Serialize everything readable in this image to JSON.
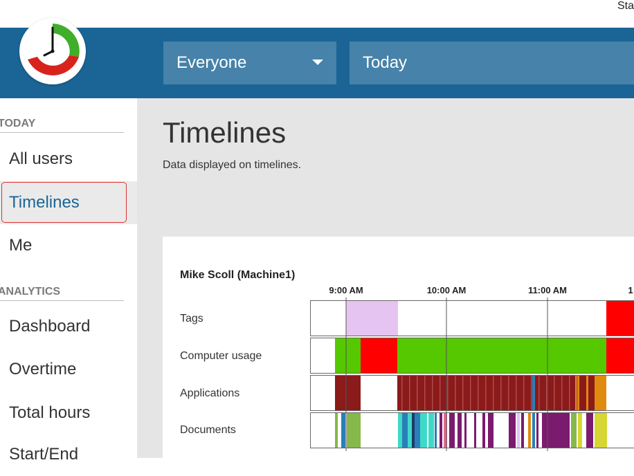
{
  "top_right_text": "Sta",
  "filters": {
    "user": "Everyone",
    "date": "Today"
  },
  "sidebar": {
    "sections": [
      {
        "title": "TODAY",
        "items": [
          {
            "label": "All users",
            "active": false
          },
          {
            "label": "Timelines",
            "active": true
          },
          {
            "label": "Me",
            "active": false
          }
        ]
      },
      {
        "title": "ANALYTICS",
        "items": [
          {
            "label": "Dashboard",
            "active": false
          },
          {
            "label": "Overtime",
            "active": false
          },
          {
            "label": "Total hours",
            "active": false
          },
          {
            "label": "Start/End",
            "active": false
          }
        ]
      }
    ]
  },
  "page": {
    "title": "Timelines",
    "subtitle": "Data displayed on timelines."
  },
  "timeline": {
    "user": "Mike Scoll (Machine1)",
    "time_labels": [
      "9:00 AM",
      "10:00 AM",
      "11:00 AM",
      "1"
    ],
    "rows": [
      "Tags",
      "Computer usage",
      "Applications",
      "Documents"
    ],
    "colors": {
      "tag": "#e6c4f2",
      "active": "#55c800",
      "idle": "#ff0000",
      "app_main": "#8b1a1a",
      "doc_purple": "#7b1b6e",
      "doc_green": "#86b84a",
      "doc_blue": "#2a7fb8",
      "doc_cyan": "#3fd9c8",
      "doc_yellow": "#d6d634",
      "orange": "#e08a10",
      "brand_green": "#3fae2a",
      "brand_red": "#d8231c"
    }
  }
}
